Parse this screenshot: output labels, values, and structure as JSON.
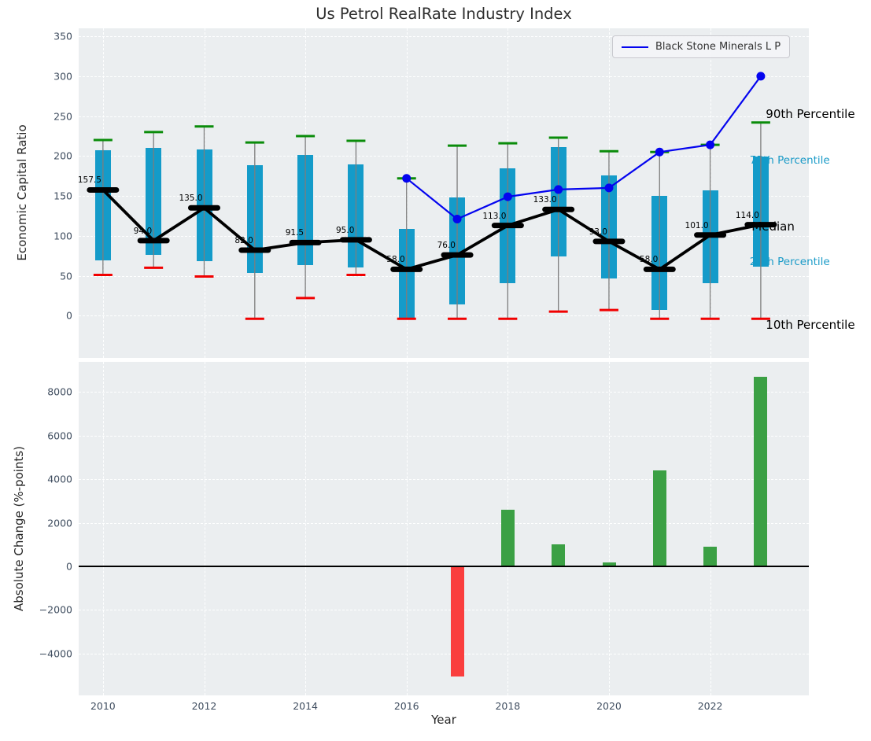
{
  "title": "Us Petrol RealRate Industry Index",
  "legend": {
    "label": "Black Stone Minerals L P"
  },
  "colors": {
    "axes_bg": "#ebeef0",
    "grid": "#ffffff",
    "box_fill": "#149bc9",
    "whisker": "#7d7d7d",
    "cap_top": "#0a8c0a",
    "cap_bottom": "#f10000",
    "median_line": "#000000",
    "company_line": "#0404ef",
    "bar_positive": "#3ba044",
    "bar_negative": "#fa3e3e",
    "tick_label": "#3f4d5f",
    "cyan_label": "#1b9bc8",
    "zero_line": "#000000"
  },
  "chart_data": [
    {
      "type": "boxplot_with_line",
      "title": "Us Petrol RealRate Industry Index",
      "ylabel": "Economic Capital Ratio",
      "ylim": [
        -53,
        360
      ],
      "xlim": [
        2009.52,
        2023.95
      ],
      "yticks": [
        0,
        50,
        100,
        150,
        200,
        250,
        300,
        350
      ],
      "xticks": [
        2010,
        2012,
        2014,
        2016,
        2018,
        2020,
        2022
      ],
      "grid": true,
      "legend_position": "upper right",
      "categories": [
        2010,
        2011,
        2012,
        2013,
        2014,
        2015,
        2016,
        2017,
        2018,
        2019,
        2020,
        2021,
        2022,
        2023
      ],
      "series": {
        "p10": [
          51,
          60,
          49,
          -4,
          22,
          51,
          -4,
          -4,
          -4,
          5,
          7,
          -4,
          -4,
          -4
        ],
        "p25": [
          69,
          76,
          68,
          54,
          63,
          60,
          -4,
          14,
          41,
          74,
          47,
          7,
          41,
          61
        ],
        "median": [
          157.5,
          94,
          135,
          82,
          91.5,
          95,
          58,
          76,
          113,
          133,
          93,
          58,
          101,
          114
        ],
        "p75": [
          207,
          210,
          208,
          189,
          201,
          190,
          109,
          148,
          185,
          211,
          176,
          150,
          157,
          199
        ],
        "p90": [
          220,
          230,
          237,
          217,
          225,
          219,
          172,
          213,
          216,
          223,
          206,
          205,
          214,
          242
        ]
      },
      "median_labels": [
        "157.5",
        "94.0",
        "135.0",
        "82.0",
        "91.5",
        "95.0",
        "58.0",
        "76.0",
        "113.0",
        "133.0",
        "93.0",
        "58.0",
        "101.0",
        "114.0"
      ],
      "company_series": {
        "name": "Black Stone Minerals L P",
        "x": [
          2016,
          2017,
          2018,
          2019,
          2020,
          2021,
          2022,
          2023
        ],
        "values": [
          172,
          121,
          149,
          158,
          160,
          205,
          214,
          300
        ]
      },
      "annotations": [
        {
          "text": "90th Percentile",
          "color": "black",
          "x": 2023.1,
          "y": 253
        },
        {
          "text": "75th Percentile",
          "color": "cyan",
          "x": 2022.78,
          "y": 194
        },
        {
          "text": "Median",
          "color": "black",
          "x": 2022.82,
          "y": 112
        },
        {
          "text": "25th Percentile",
          "color": "cyan",
          "x": 2022.78,
          "y": 67
        },
        {
          "text": "10th Percentile",
          "color": "black",
          "x": 2023.1,
          "y": -12
        }
      ]
    },
    {
      "type": "bar",
      "ylabel": "Absolute Change (%-points)",
      "xlabel": "Year",
      "ylim": [
        -5920,
        9387
      ],
      "xlim": [
        2009.52,
        2023.95
      ],
      "yticks": [
        8000,
        6000,
        4000,
        2000,
        0,
        -2000,
        -4000
      ],
      "ytick_labels": [
        "8000",
        "6000",
        "4000",
        "2000",
        "0",
        "−2000",
        "−4000"
      ],
      "xticks": [
        2010,
        2012,
        2014,
        2016,
        2018,
        2020,
        2022
      ],
      "grid": true,
      "categories": [
        2010,
        2011,
        2012,
        2013,
        2014,
        2015,
        2016,
        2017,
        2018,
        2019,
        2020,
        2021,
        2022,
        2023
      ],
      "values": [
        null,
        null,
        null,
        null,
        null,
        null,
        null,
        -5000,
        2600,
        1010,
        170,
        4420,
        900,
        8700
      ]
    }
  ]
}
